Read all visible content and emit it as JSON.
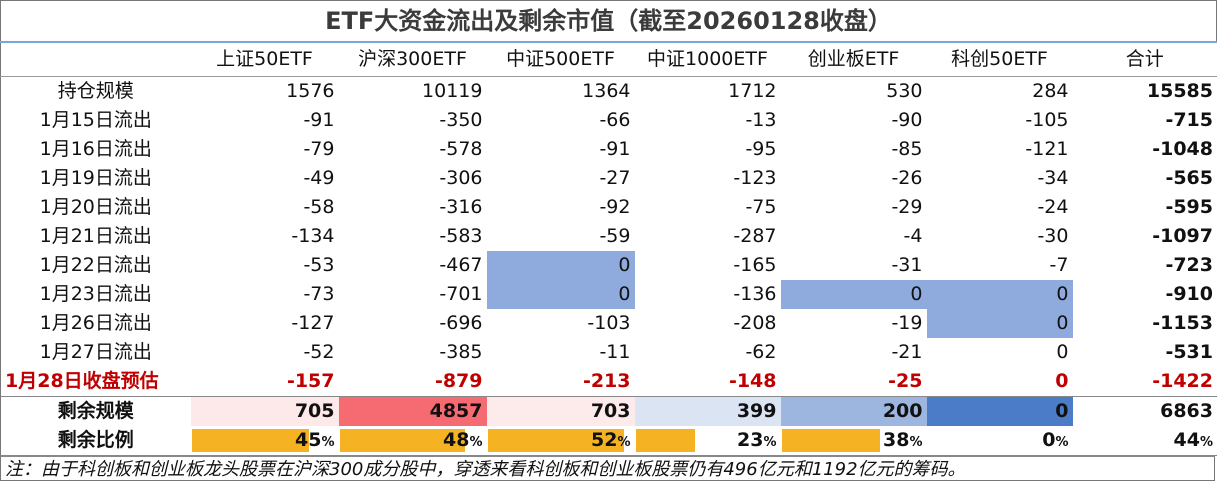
{
  "title": "ETF大资金流出及剩余市值（截至20260128收盘）",
  "colors": {
    "highlight_zero": "#8faadc",
    "remaining_bar": "#f5b324",
    "estimate_text": "#c00000",
    "remaining_red_max": "#f66a72",
    "remaining_blue_max": "#4a7cc7"
  },
  "chart_data": {
    "type": "table",
    "columns": [
      "",
      "上证50ETF",
      "沪深300ETF",
      "中证500ETF",
      "中证1000ETF",
      "创业板ETF",
      "科创50ETF",
      "合计"
    ],
    "rows": [
      {
        "label": "持仓规模",
        "values": [
          "1576",
          "10119",
          "1364",
          "1712",
          "530",
          "284",
          "15585"
        ]
      },
      {
        "label": "1月15日流出",
        "values": [
          "-91",
          "-350",
          "-66",
          "-13",
          "-90",
          "-105",
          "-715"
        ]
      },
      {
        "label": "1月16日流出",
        "values": [
          "-79",
          "-578",
          "-91",
          "-95",
          "-85",
          "-121",
          "-1048"
        ]
      },
      {
        "label": "1月19日流出",
        "values": [
          "-49",
          "-306",
          "-27",
          "-123",
          "-26",
          "-34",
          "-565"
        ]
      },
      {
        "label": "1月20日流出",
        "values": [
          "-58",
          "-316",
          "-92",
          "-75",
          "-29",
          "-24",
          "-595"
        ]
      },
      {
        "label": "1月21日流出",
        "values": [
          "-134",
          "-583",
          "-59",
          "-287",
          "-4",
          "-30",
          "-1097"
        ]
      },
      {
        "label": "1月22日流出",
        "values": [
          "-53",
          "-467",
          "0",
          "-165",
          "-31",
          "-7",
          "-723"
        ]
      },
      {
        "label": "1月23日流出",
        "values": [
          "-73",
          "-701",
          "0",
          "-136",
          "0",
          "0",
          "-910"
        ]
      },
      {
        "label": "1月26日流出",
        "values": [
          "-127",
          "-696",
          "-103",
          "-208",
          "-19",
          "0",
          "-1153"
        ]
      },
      {
        "label": "1月27日流出",
        "values": [
          "-52",
          "-385",
          "-11",
          "-62",
          "-21",
          "0",
          "-531"
        ]
      }
    ],
    "estimate_row": {
      "label": "1月28日收盘预估",
      "values": [
        "-157",
        "-879",
        "-213",
        "-148",
        "-25",
        "0",
        "-1422"
      ]
    },
    "remaining_row": {
      "label": "剩余规模",
      "values": [
        "705",
        "4857",
        "703",
        "399",
        "200",
        "0",
        "6863"
      ]
    },
    "ratio_row": {
      "label": "剩余比例",
      "values": [
        45,
        48,
        52,
        23,
        38,
        0,
        44
      ],
      "unit": "%"
    },
    "highlighted_zero_cells": [
      [
        6,
        2
      ],
      [
        7,
        2
      ],
      [
        7,
        4
      ],
      [
        7,
        5
      ],
      [
        8,
        5
      ]
    ]
  },
  "note": "注：由于科创板和创业板龙头股票在沪深300成分股中，穿透来看科创板和创业板股票仍有496亿元和1192亿元的筹码。"
}
